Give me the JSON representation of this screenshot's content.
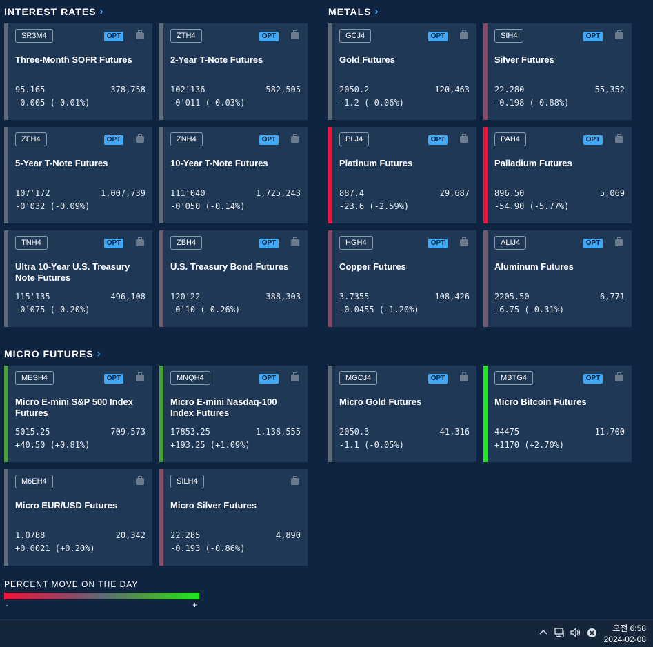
{
  "sections": {
    "interest_rates": "INTEREST RATES",
    "metals": "METALS",
    "micro_futures": "MICRO FUTURES"
  },
  "opt_label": "OPT",
  "cards": [
    {
      "sym": "SR3M4",
      "name": "Three-Month SOFR Futures",
      "price": "95.165",
      "vol": "378,758",
      "chg": "-0.005 (-0.01%)",
      "opt": true,
      "color": "#5e6a78"
    },
    {
      "sym": "ZTH4",
      "name": "2-Year T-Note Futures",
      "price": "102'136",
      "vol": "582,505",
      "chg": "-0'011 (-0.03%)",
      "opt": true,
      "color": "#5e6a78"
    },
    {
      "sym": "GCJ4",
      "name": "Gold Futures",
      "price": "2050.2",
      "vol": "120,463",
      "chg": "-1.2 (-0.06%)",
      "opt": true,
      "color": "#5e6a78"
    },
    {
      "sym": "SIH4",
      "name": "Silver Futures",
      "price": "22.280",
      "vol": "55,352",
      "chg": "-0.198 (-0.88%)",
      "opt": true,
      "color": "#8a4a66"
    },
    {
      "sym": "ZFH4",
      "name": "5-Year T-Note Futures",
      "price": "107'172",
      "vol": "1,007,739",
      "chg": "-0'032 (-0.09%)",
      "opt": true,
      "color": "#5e6a78"
    },
    {
      "sym": "ZNH4",
      "name": "10-Year T-Note Futures",
      "price": "111'040",
      "vol": "1,725,243",
      "chg": "-0'050 (-0.14%)",
      "opt": true,
      "color": "#5e6a78"
    },
    {
      "sym": "PLJ4",
      "name": "Platinum Futures",
      "price": "887.4",
      "vol": "29,687",
      "chg": "-23.6 (-2.59%)",
      "opt": true,
      "color": "#f0143c"
    },
    {
      "sym": "PAH4",
      "name": "Palladium Futures",
      "price": "896.50",
      "vol": "5,069",
      "chg": "-54.90 (-5.77%)",
      "opt": true,
      "color": "#f0143c"
    },
    {
      "sym": "TNH4",
      "name": "Ultra 10-Year U.S. Treasury Note Futures",
      "price": "115'135",
      "vol": "496,108",
      "chg": "-0'075 (-0.20%)",
      "opt": true,
      "color": "#5e6a78"
    },
    {
      "sym": "ZBH4",
      "name": "U.S. Treasury Bond Futures",
      "price": "120'22",
      "vol": "388,303",
      "chg": "-0'10 (-0.26%)",
      "opt": true,
      "color": "#6e5a6e"
    },
    {
      "sym": "HGH4",
      "name": "Copper Futures",
      "price": "3.7355",
      "vol": "108,426",
      "chg": "-0.0455 (-1.20%)",
      "opt": true,
      "color": "#8a4a66"
    },
    {
      "sym": "ALIJ4",
      "name": "Aluminum Futures",
      "price": "2205.50",
      "vol": "6,771",
      "chg": "-6.75 (-0.31%)",
      "opt": true,
      "color": "#6e5a6e"
    },
    {
      "sym": "MESH4",
      "name": "Micro E-mini S&P 500 Index Futures",
      "price": "5015.25",
      "vol": "709,573",
      "chg": "+40.50 (+0.81%)",
      "opt": true,
      "color": "#4aa03a"
    },
    {
      "sym": "MNQH4",
      "name": "Micro E-mini Nasdaq-100 Index Futures",
      "price": "17853.25",
      "vol": "1,138,555",
      "chg": "+193.25 (+1.09%)",
      "opt": true,
      "color": "#4aa03a"
    },
    {
      "sym": "MGCJ4",
      "name": "Micro Gold Futures",
      "price": "2050.3",
      "vol": "41,316",
      "chg": "-1.1 (-0.05%)",
      "opt": true,
      "color": "#5e6a78"
    },
    {
      "sym": "MBTG4",
      "name": "Micro Bitcoin Futures",
      "price": "44475",
      "vol": "11,700",
      "chg": "+1170 (+2.70%)",
      "opt": true,
      "color": "#1ee81e"
    },
    {
      "sym": "M6EH4",
      "name": "Micro EUR/USD Futures",
      "price": "1.0788",
      "vol": "20,342",
      "chg": "+0.0021 (+0.20%)",
      "opt": false,
      "color": "#5e6a78"
    },
    {
      "sym": "SILH4",
      "name": "Micro Silver Futures",
      "price": "22.285",
      "vol": "4,890",
      "chg": "-0.193 (-0.86%)",
      "opt": false,
      "color": "#8a4a66"
    }
  ],
  "legend": {
    "title": "PERCENT MOVE ON THE DAY",
    "minus": "-",
    "plus": "+"
  },
  "taskbar": {
    "time": "오전 6:58",
    "date": "2024-02-08",
    "icons": [
      "chevron-up-icon",
      "network-icon",
      "volume-icon",
      "close-circle-icon"
    ]
  }
}
